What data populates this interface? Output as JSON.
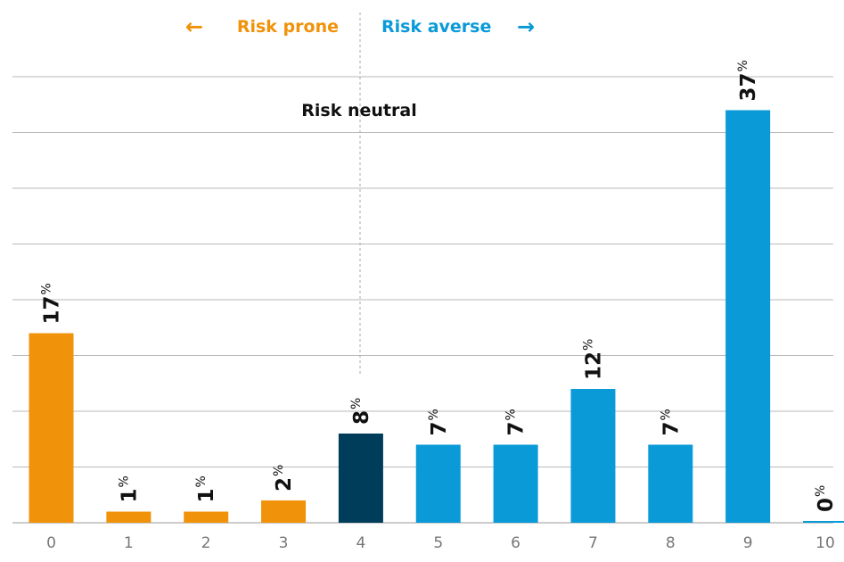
{
  "chart_data": {
    "type": "bar",
    "categories": [
      "0",
      "1",
      "2",
      "3",
      "4",
      "5",
      "6",
      "7",
      "8",
      "9",
      "10"
    ],
    "values": [
      17,
      1,
      1,
      2,
      8,
      7,
      7,
      12,
      7,
      37,
      0
    ],
    "bar_labels": [
      "17",
      "1",
      "1",
      "2",
      "8",
      "7",
      "7",
      "12",
      "7",
      "37",
      "0"
    ],
    "value_suffix": "%",
    "bar_colors": [
      "#f0920a",
      "#f0920a",
      "#f0920a",
      "#f0920a",
      "#003d5b",
      "#0a9ad8",
      "#0a9ad8",
      "#0a9ad8",
      "#0a9ad8",
      "#0a9ad8",
      "#0a9ad8"
    ],
    "ylim": [
      0,
      40
    ],
    "grid": true,
    "annotations": {
      "risk_prone": "Risk prone",
      "risk_averse": "Risk averse",
      "risk_neutral": "Risk neutral",
      "arrow_left": "←",
      "arrow_right": "→"
    },
    "colors": {
      "prone": "#f0920a",
      "averse": "#0a9ad8",
      "neutral": "#003d5b",
      "grid": "#b9b9b9",
      "tick_label": "#777777",
      "value_label": "#111111"
    }
  }
}
